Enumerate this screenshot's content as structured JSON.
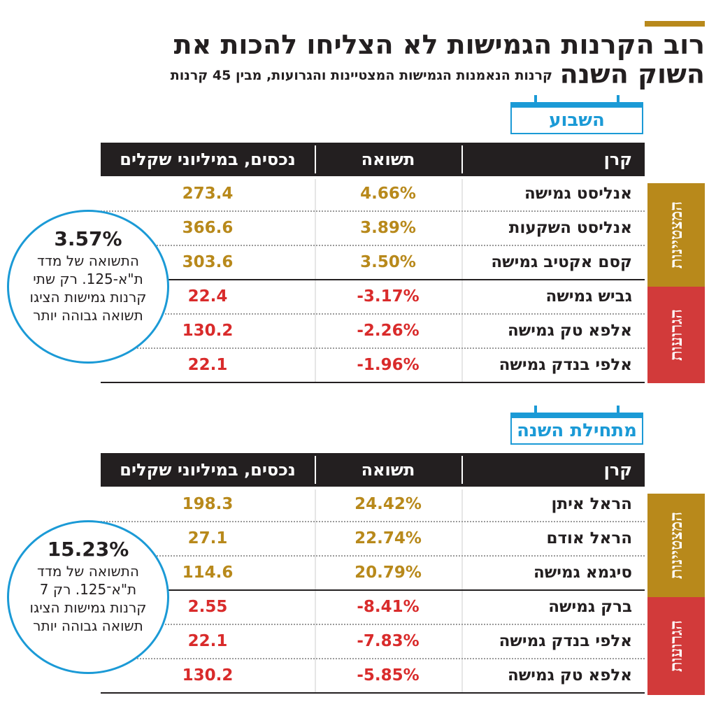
{
  "header": {
    "title_line1": "רוב הקרנות הגמישות לא הצליחו להכות את",
    "title_line2": "השוק השנה",
    "subtitle": "קרנות הנאמנות הגמישות המצטיינות והגרועות, מבין 45 קרנות"
  },
  "colors": {
    "gold": "#b8891b",
    "red": "#d23a3a",
    "blue": "#1b9ad6",
    "dark": "#231f20"
  },
  "icons": [
    "calendar-icon"
  ],
  "sections": [
    {
      "period_label": "השבוע",
      "columns": {
        "fund": "קרן",
        "return": "תשואה",
        "assets": "נכסים, במיליוני שקלים"
      },
      "categories": {
        "best": "המצטיינות",
        "worst": "הגרועות"
      },
      "rows": [
        {
          "fund": "אנליסט גמישה",
          "return": "4.66%",
          "assets": "273.4"
        },
        {
          "fund": "אנליסט השקעות",
          "return": "3.89%",
          "assets": "366.6"
        },
        {
          "fund": "קסם אקטיב גמישה",
          "return": "3.50%",
          "assets": "303.6"
        },
        {
          "fund": "גביש גמישה",
          "return": "-3.17%",
          "assets": "22.4"
        },
        {
          "fund": "אלפא טק גמישה",
          "return": "-2.26%",
          "assets": "130.2"
        },
        {
          "fund": "אלפי בנדק גמישה",
          "return": "-1.96%",
          "assets": "22.1"
        }
      ],
      "bubble": {
        "value": "3.57%",
        "text": "התשואה של מדד ת\"א-125. רק שתי קרנות גמישות הציגו תשואה גבוהה יותר"
      }
    },
    {
      "period_label": "מתחילת השנה",
      "columns": {
        "fund": "קרן",
        "return": "תשואה",
        "assets": "נכסים, במיליוני שקלים"
      },
      "categories": {
        "best": "המצטיינות",
        "worst": "הגרועות"
      },
      "rows": [
        {
          "fund": "הראל איתן",
          "return": "24.42%",
          "assets": "198.3"
        },
        {
          "fund": "הראל אודם",
          "return": "22.74%",
          "assets": "27.1"
        },
        {
          "fund": "סיגמא גמישה",
          "return": "20.79%",
          "assets": "114.6"
        },
        {
          "fund": "ברק גמישה",
          "return": "-8.41%",
          "assets": "2.55"
        },
        {
          "fund": "אלפי בנדק גמישה",
          "return": "-7.83%",
          "assets": "22.1"
        },
        {
          "fund": "אלפא טק גמישה",
          "return": "-5.85%",
          "assets": "130.2"
        }
      ],
      "bubble": {
        "value": "15.23%",
        "text": "התשואה של מדד ת\"א־125. רק 7 קרנות גמישות הציגו תשואה גבוהה יותר"
      }
    }
  ]
}
